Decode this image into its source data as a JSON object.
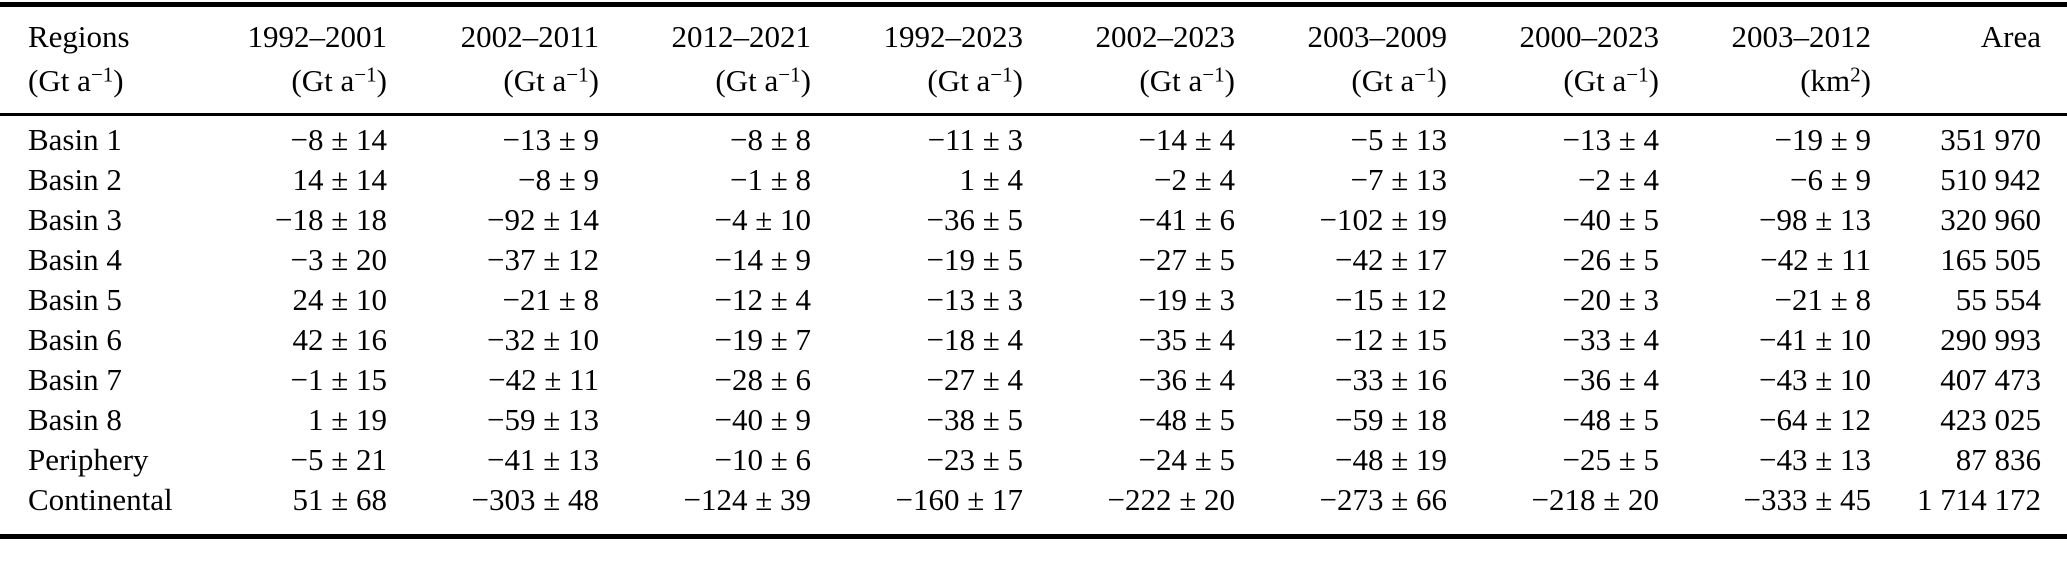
{
  "table": {
    "columns": [
      {
        "id": "regions",
        "label": "Regions",
        "unit_main": "(Gt a",
        "unit_sup": "−1",
        "unit_close": ")"
      },
      {
        "id": "1992-2001",
        "label": "1992–2001",
        "unit_main": "(Gt a",
        "unit_sup": "−1",
        "unit_close": ")"
      },
      {
        "id": "2002-2011",
        "label": "2002–2011",
        "unit_main": "(Gt a",
        "unit_sup": "−1",
        "unit_close": ")"
      },
      {
        "id": "2012-2021",
        "label": "2012–2021",
        "unit_main": "(Gt a",
        "unit_sup": "−1",
        "unit_close": ")"
      },
      {
        "id": "1992-2023",
        "label": "1992–2023",
        "unit_main": "(Gt a",
        "unit_sup": "−1",
        "unit_close": ")"
      },
      {
        "id": "2002-2023",
        "label": "2002–2023",
        "unit_main": "(Gt a",
        "unit_sup": "−1",
        "unit_close": ")"
      },
      {
        "id": "2003-2009",
        "label": "2003–2009",
        "unit_main": "(Gt a",
        "unit_sup": "−1",
        "unit_close": ")"
      },
      {
        "id": "2000-2023",
        "label": "2000–2023",
        "unit_main": "(Gt a",
        "unit_sup": "−1",
        "unit_close": ")"
      },
      {
        "id": "2003-2012",
        "label": "2003–2012",
        "unit_main": "(km",
        "unit_sup": "2",
        "unit_close": ")"
      },
      {
        "id": "area",
        "label": "Area",
        "unit_main": "",
        "unit_sup": "",
        "unit_close": ""
      }
    ],
    "rows": [
      {
        "region": "Basin 1",
        "values": [
          "−8 ± 14",
          "−13 ± 9",
          "−8 ± 8",
          "−11 ± 3",
          "−14 ± 4",
          "−5 ± 13",
          "−13 ± 4",
          "−19 ± 9",
          "351 970"
        ]
      },
      {
        "region": "Basin 2",
        "values": [
          "14 ± 14",
          "−8 ± 9",
          "−1 ± 8",
          "1 ± 4",
          "−2 ± 4",
          "−7 ± 13",
          "−2 ± 4",
          "−6 ± 9",
          "510 942"
        ]
      },
      {
        "region": "Basin 3",
        "values": [
          "−18 ± 18",
          "−92 ± 14",
          "−4 ± 10",
          "−36 ± 5",
          "−41 ± 6",
          "−102 ± 19",
          "−40 ± 5",
          "−98 ± 13",
          "320 960"
        ]
      },
      {
        "region": "Basin 4",
        "values": [
          "−3 ± 20",
          "−37 ± 12",
          "−14 ± 9",
          "−19 ± 5",
          "−27 ± 5",
          "−42 ± 17",
          "−26 ± 5",
          "−42 ± 11",
          "165 505"
        ]
      },
      {
        "region": "Basin 5",
        "values": [
          "24 ± 10",
          "−21 ± 8",
          "−12 ± 4",
          "−13 ± 3",
          "−19 ± 3",
          "−15 ± 12",
          "−20 ± 3",
          "−21 ± 8",
          "55 554"
        ]
      },
      {
        "region": "Basin 6",
        "values": [
          "42 ± 16",
          "−32 ± 10",
          "−19 ± 7",
          "−18 ± 4",
          "−35 ± 4",
          "−12 ± 15",
          "−33 ± 4",
          "−41 ± 10",
          "290 993"
        ]
      },
      {
        "region": "Basin 7",
        "values": [
          "−1 ± 15",
          "−42 ± 11",
          "−28 ± 6",
          "−27 ± 4",
          "−36 ± 4",
          "−33 ± 16",
          "−36 ± 4",
          "−43 ± 10",
          "407 473"
        ]
      },
      {
        "region": "Basin 8",
        "values": [
          "1 ± 19",
          "−59 ± 13",
          "−40 ± 9",
          "−38 ± 5",
          "−48 ± 5",
          "−59 ± 18",
          "−48 ± 5",
          "−64 ± 12",
          "423 025"
        ]
      },
      {
        "region": "Periphery",
        "values": [
          "−5 ± 21",
          "−41 ± 13",
          "−10 ± 6",
          "−23 ± 5",
          "−24 ± 5",
          "−48 ± 19",
          "−25 ± 5",
          "−43 ± 13",
          "87 836"
        ]
      },
      {
        "region": "Continental",
        "values": [
          "51 ± 68",
          "−303 ± 48",
          "−124 ± 39",
          "−160 ± 17",
          "−222 ± 20",
          "−273 ± 66",
          "−218 ± 20",
          "−333 ± 45",
          "1 714 172"
        ]
      }
    ]
  }
}
